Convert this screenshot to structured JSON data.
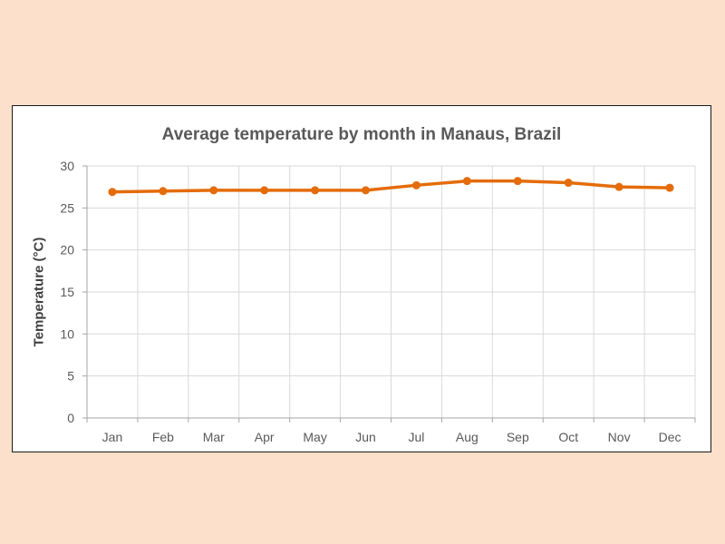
{
  "chart_data": {
    "type": "line",
    "title": "Average temperature by month in Manaus, Brazil",
    "xlabel": "",
    "ylabel": "Temperature (°C)",
    "categories": [
      "Jan",
      "Feb",
      "Mar",
      "Apr",
      "May",
      "Jun",
      "Jul",
      "Aug",
      "Sep",
      "Oct",
      "Nov",
      "Dec"
    ],
    "series": [
      {
        "values": [
          26.9,
          27.0,
          27.1,
          27.1,
          27.1,
          27.1,
          27.7,
          28.2,
          28.2,
          28.0,
          27.5,
          27.4
        ],
        "color": "#e46c0a"
      }
    ],
    "ylim": [
      0,
      30
    ],
    "yticks": [
      0,
      5,
      10,
      15,
      20,
      25,
      30
    ],
    "grid": true,
    "legend": "none",
    "markers": true
  }
}
